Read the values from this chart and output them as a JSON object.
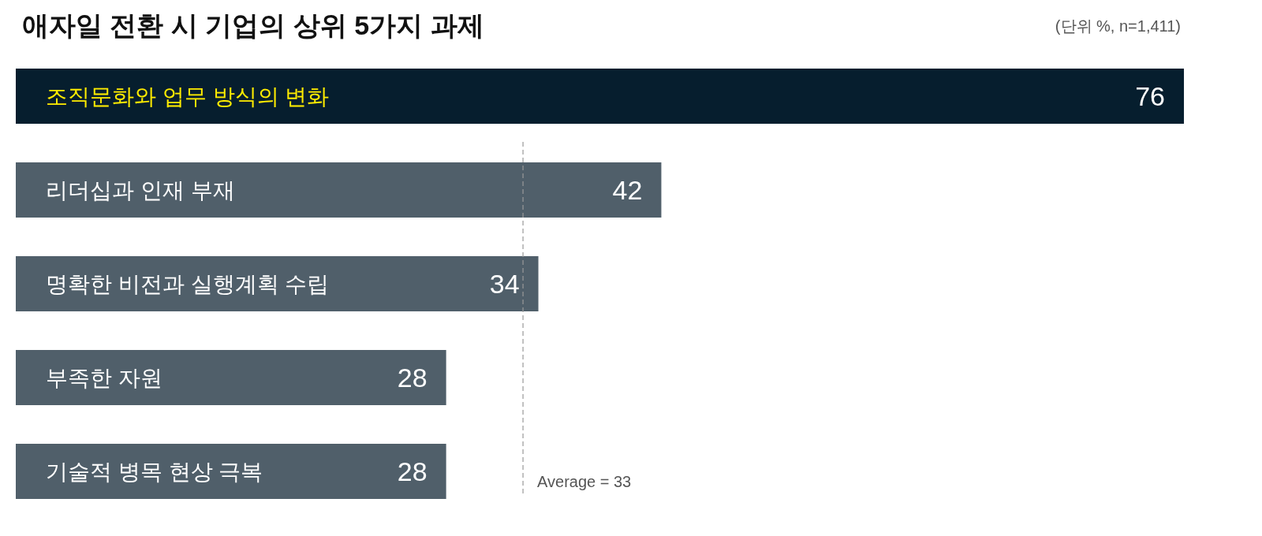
{
  "chart_data": {
    "type": "bar",
    "orientation": "horizontal",
    "title": "애자일 전환 시 기업의 상위 5가지 과제",
    "subtitle": "(단위 %, n=1,411)",
    "categories": [
      "조직문화와 업무 방식의 변화",
      "리더십과 인재 부재",
      "명확한 비전과 실행계획 수립",
      "부족한 자원",
      "기술적 병목 현상 극복"
    ],
    "values": [
      76,
      42,
      34,
      28,
      28
    ],
    "colors": [
      "#061e2e",
      "#505f6a",
      "#505f6a",
      "#505f6a",
      "#505f6a"
    ],
    "xlim": [
      0,
      76
    ],
    "tick_labels": false,
    "data_labels": true,
    "ref_lines": [
      {
        "axis": "x",
        "value": 33,
        "label": "Average = 33",
        "color": "#999999",
        "line_style": "dashed"
      }
    ]
  }
}
